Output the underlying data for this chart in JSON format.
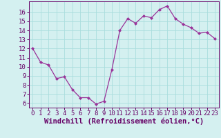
{
  "x": [
    0,
    1,
    2,
    3,
    4,
    5,
    6,
    7,
    8,
    9,
    10,
    11,
    12,
    13,
    14,
    15,
    16,
    17,
    18,
    19,
    20,
    21,
    22,
    23
  ],
  "y": [
    12.0,
    10.5,
    10.2,
    8.7,
    8.9,
    7.5,
    6.6,
    6.6,
    5.9,
    6.2,
    9.7,
    14.0,
    15.3,
    14.8,
    15.6,
    15.4,
    16.3,
    16.7,
    15.3,
    14.7,
    14.3,
    13.7,
    13.8,
    13.1
  ],
  "line_color": "#993399",
  "marker": "D",
  "marker_size": 2.0,
  "bg_color": "#d4f0f0",
  "grid_color": "#aadddd",
  "xlabel": "Windchill (Refroidissement éolien,°C)",
  "xlabel_fontsize": 7.5,
  "ylim": [
    5.5,
    17.2
  ],
  "xlim": [
    -0.5,
    23.5
  ],
  "yticks": [
    6,
    7,
    8,
    9,
    10,
    11,
    12,
    13,
    14,
    15,
    16
  ],
  "xticks": [
    0,
    1,
    2,
    3,
    4,
    5,
    6,
    7,
    8,
    9,
    10,
    11,
    12,
    13,
    14,
    15,
    16,
    17,
    18,
    19,
    20,
    21,
    22,
    23
  ],
  "tick_fontsize": 6.5,
  "tick_color": "#660066",
  "spine_color": "#660066",
  "line_width": 0.9
}
